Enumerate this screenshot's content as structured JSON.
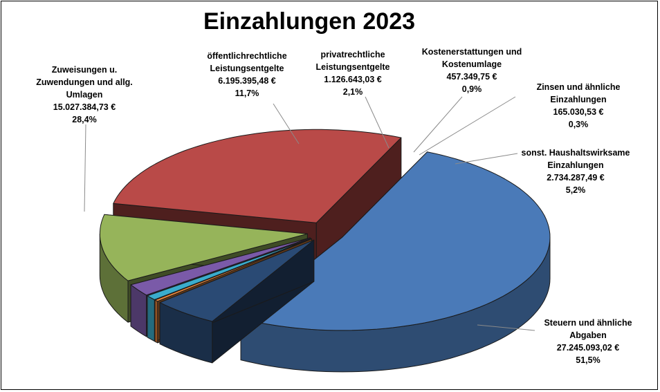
{
  "chart_data": {
    "type": "pie",
    "title": "Einzahlungen 2023",
    "slices": [
      {
        "lines": [
          "Steuern und ähnliche",
          "Abgaben"
        ],
        "value_text": "27.245.093,02 €",
        "pct_text": "51,5%",
        "value": 27245093.02,
        "pct": 51.5,
        "color": "#4a7ab8"
      },
      {
        "lines": [
          "sonst. Haushaltswirksame",
          "Einzahlungen"
        ],
        "value_text": "2.734.287,49 €",
        "pct_text": "5,2%",
        "value": 2734287.49,
        "pct": 5.2,
        "color": "#2a4a74"
      },
      {
        "lines": [
          "Zinsen und ähnliche",
          "Einzahlungen"
        ],
        "value_text": "165.030,53 €",
        "pct_text": "0,3%",
        "value": 165030.53,
        "pct": 0.3,
        "color": "#e8853a"
      },
      {
        "lines": [
          "Kostenerstattungen und",
          "Kostenumlage"
        ],
        "value_text": "457.349,75 €",
        "pct_text": "0,9%",
        "value": 457349.75,
        "pct": 0.9,
        "color": "#3aaccc"
      },
      {
        "lines": [
          "privatrechtliche",
          "Leistungsentgelte"
        ],
        "value_text": "1.126.643,03 €",
        "pct_text": "2,1%",
        "value": 1126643.03,
        "pct": 2.1,
        "color": "#7a5aa8"
      },
      {
        "lines": [
          "öffentlichrechtliche",
          "Leistungsentgelte"
        ],
        "value_text": "6.195.395,48 €",
        "pct_text": "11,7%",
        "value": 6195395.48,
        "pct": 11.7,
        "color": "#96b45a"
      },
      {
        "lines": [
          "Zuweisungen u.",
          "Zuwendungen und allg.",
          "Umlagen"
        ],
        "value_text": "15.027.384,73 €",
        "pct_text": "28,4%",
        "value": 15027384.73,
        "pct": 28.4,
        "color": "#b94a48"
      }
    ]
  }
}
